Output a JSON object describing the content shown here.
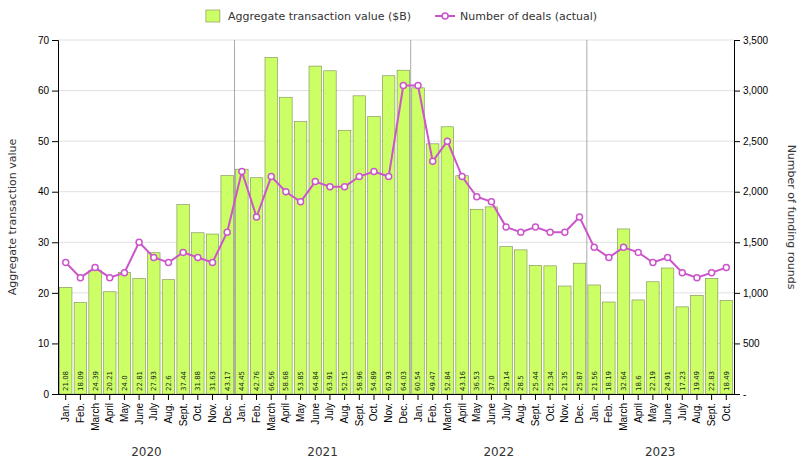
{
  "chart_data": {
    "type": "bar",
    "categories": [
      "Jan.",
      "Feb.",
      "March",
      "April",
      "May",
      "June",
      "July",
      "Aug.",
      "Sept.",
      "Oct.",
      "Nov.",
      "Dec.",
      "Jan.",
      "Feb.",
      "March",
      "April",
      "May",
      "June",
      "July",
      "Aug.",
      "Sept.",
      "Oct.",
      "Nov.",
      "Dec.",
      "Jan.",
      "Feb.",
      "March",
      "April",
      "May",
      "June",
      "July",
      "Aug.",
      "Sept.",
      "Oct.",
      "Nov.",
      "Dec.",
      "Jan.",
      "Feb.",
      "March",
      "April",
      "May",
      "June",
      "July",
      "Aug.",
      "Sept.",
      "Oct."
    ],
    "series": [
      {
        "name": "Aggregate transaction value ($B)",
        "type": "bar",
        "color": "#ccff66",
        "data_labels": true,
        "values": [
          21.08,
          18.09,
          24.39,
          20.21,
          24.0,
          22.81,
          27.93,
          22.6,
          37.44,
          31.88,
          31.63,
          43.17,
          44.45,
          42.76,
          66.56,
          58.68,
          53.85,
          64.84,
          63.91,
          52.15,
          58.96,
          54.89,
          62.93,
          64.03,
          60.54,
          49.47,
          52.84,
          43.16,
          36.53,
          37.0,
          29.14,
          28.5,
          25.44,
          25.34,
          21.35,
          25.87,
          21.56,
          18.19,
          32.64,
          18.6,
          22.19,
          24.91,
          17.23,
          19.49,
          22.83,
          18.49
        ],
        "value_labels": [
          "21.08",
          "18.09",
          "24.39",
          "20.21",
          "24.0",
          "22.81",
          "27.93",
          "22.6",
          "37.44",
          "31.88",
          "31.63",
          "43.17",
          "44.45",
          "42.76",
          "66.56",
          "58.68",
          "53.85",
          "64.84",
          "63.91",
          "52.15",
          "58.96",
          "54.89",
          "62.93",
          "64.03",
          "60.54",
          "49.47",
          "52.84",
          "43.16",
          "36.53",
          "37.0",
          "29.14",
          "28.5",
          "25.44",
          "25.34",
          "21.35",
          "25.87",
          "21.56",
          "18.19",
          "32.64",
          "18.6",
          "22.19",
          "24.91",
          "17.23",
          "19.49",
          "22.83",
          "18.49"
        ]
      },
      {
        "name": "Number of deals (actual)",
        "type": "line",
        "color": "#cc55cc",
        "marker": "circle",
        "axis": "y2",
        "values": [
          1300,
          1150,
          1250,
          1150,
          1200,
          1500,
          1350,
          1300,
          1400,
          1350,
          1300,
          1600,
          2200,
          1750,
          2150,
          2000,
          1900,
          2100,
          2050,
          2050,
          2150,
          2200,
          2150,
          3050,
          3050,
          2300,
          2500,
          2150,
          1950,
          1900,
          1650,
          1600,
          1650,
          1600,
          1600,
          1750,
          1450,
          1350,
          1450,
          1400,
          1300,
          1350,
          1200,
          1150,
          1200,
          1250
        ]
      }
    ],
    "ylabel": "Aggregate transaction value",
    "y2label": "Number of funding rounds",
    "ylim": [
      0,
      70
    ],
    "yticks": [
      0,
      10,
      20,
      30,
      40,
      50,
      60,
      70
    ],
    "y2lim": [
      0,
      3500
    ],
    "y2ticks": [
      {
        "value": 0,
        "label": "-"
      },
      500,
      {
        "value": 1000,
        "label": "1,000"
      },
      {
        "value": 1500,
        "label": "1,500"
      },
      {
        "value": 2000,
        "label": "2,000"
      },
      {
        "value": 2500,
        "label": "2,500"
      },
      {
        "value": 3000,
        "label": "3,000"
      },
      {
        "value": 3500,
        "label": "3,500"
      }
    ],
    "grid": true,
    "legend": "top",
    "annotations": [
      "2020",
      "2021",
      "2022",
      "2023"
    ]
  }
}
